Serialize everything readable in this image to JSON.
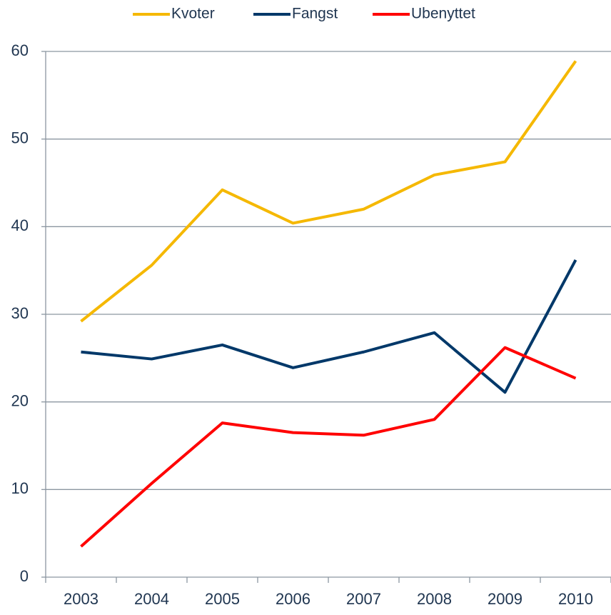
{
  "chart_data": {
    "type": "line",
    "categories": [
      "2003",
      "2004",
      "2005",
      "2006",
      "2007",
      "2008",
      "2009",
      "2010"
    ],
    "series": [
      {
        "name": "Kvoter",
        "color": "#f5b800",
        "values": [
          29.2,
          35.6,
          44.2,
          40.4,
          42.0,
          45.9,
          47.4,
          58.9
        ]
      },
      {
        "name": "Fangst",
        "color": "#003869",
        "values": [
          25.7,
          24.9,
          26.5,
          23.9,
          25.7,
          27.9,
          21.1,
          36.2
        ]
      },
      {
        "name": "Ubenyttet",
        "color": "#ff0000",
        "values": [
          3.5,
          10.7,
          17.6,
          16.5,
          16.2,
          18.0,
          26.2,
          22.7
        ]
      }
    ],
    "ylim": [
      0,
      60
    ],
    "yticks": [
      0,
      10,
      20,
      30,
      40,
      50,
      60
    ],
    "grid": true,
    "legend": "top"
  }
}
